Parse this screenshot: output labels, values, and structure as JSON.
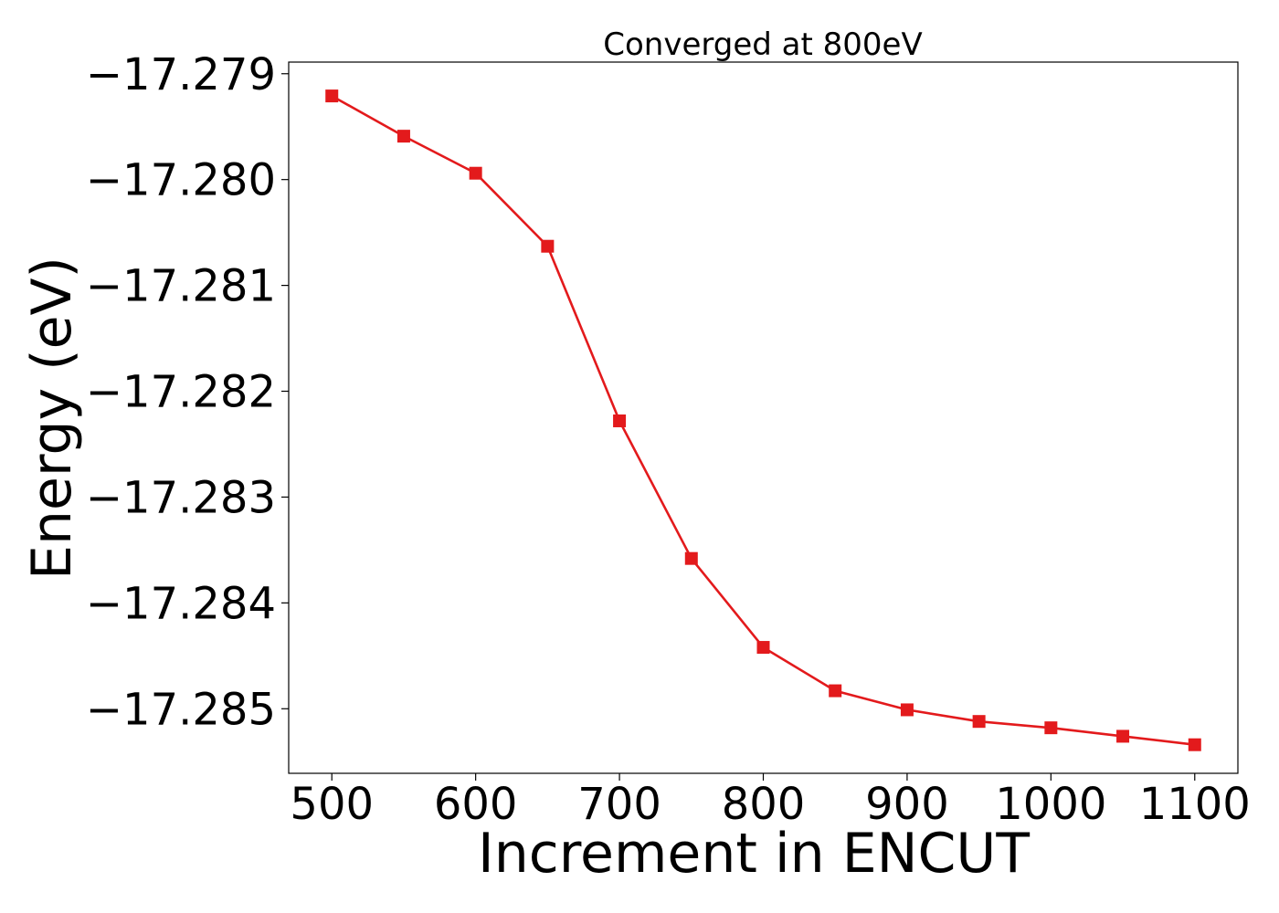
{
  "chart_data": {
    "type": "line",
    "title": "Converged at 800eV",
    "xlabel": "Increment in ENCUT",
    "ylabel": "Energy (eV)",
    "xlim": [
      470,
      1130
    ],
    "ylim": [
      -17.28561,
      -17.27889
    ],
    "x_ticks": [
      500,
      600,
      700,
      800,
      900,
      1000,
      1100
    ],
    "x_tick_labels": [
      "500",
      "600",
      "700",
      "800",
      "900",
      "1000",
      "1100"
    ],
    "y_ticks": [
      -17.279,
      -17.28,
      -17.281,
      -17.282,
      -17.283,
      -17.284,
      -17.285
    ],
    "y_tick_labels": [
      "−17.279",
      "−17.280",
      "−17.281",
      "−17.282",
      "−17.283",
      "−17.284",
      "−17.285"
    ],
    "grid": false,
    "series": [
      {
        "color": "#e31a1c",
        "marker": "square",
        "x": [
          500,
          550,
          600,
          650,
          700,
          750,
          800,
          850,
          900,
          950,
          1000,
          1050,
          1100
        ],
        "y": [
          -17.27921,
          -17.27959,
          -17.27994,
          -17.28063,
          -17.28228,
          -17.28358,
          -17.28442,
          -17.28483,
          -17.28501,
          -17.28512,
          -17.28518,
          -17.28526,
          -17.28534
        ]
      }
    ]
  }
}
